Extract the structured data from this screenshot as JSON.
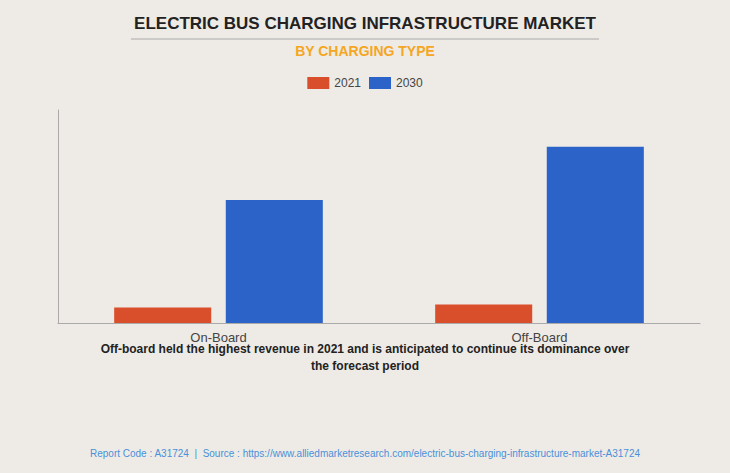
{
  "chart_data": {
    "type": "bar",
    "title": "ELECTRIC BUS CHARGING INFRASTRUCTURE MARKET",
    "subtitle": "BY CHARGING TYPE",
    "subtitle_color": "#f5a623",
    "categories": [
      "On-Board",
      "Off-Board"
    ],
    "series": [
      {
        "name": "2021",
        "color": "#d94f2b",
        "values": [
          0.38,
          0.45
        ]
      },
      {
        "name": "2030",
        "color": "#2b63c8",
        "values": [
          3.0,
          4.3
        ]
      }
    ],
    "ylim": [
      0,
      5.2
    ],
    "yticks": [],
    "grid": false,
    "legend": "top",
    "tick_labels": "x",
    "annotations": [
      "Off-board held the highest revenue in 2021 and is anticipated to continue its dominance over\nthe forecast period",
      "Report Code : A31724  |  Source : https://www.alliedmarketresearch.com/electric-bus-charging-infrastructure-market-A31724"
    ]
  }
}
